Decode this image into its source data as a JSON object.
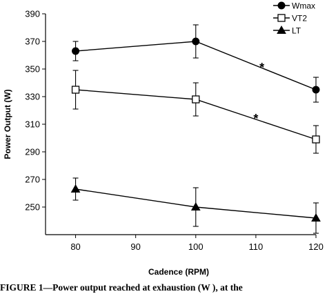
{
  "chart_data": {
    "type": "line",
    "xlabel": "Cadence (RPM)",
    "ylabel": "Power Output (W)",
    "xlim": [
      75,
      120
    ],
    "ylim": [
      230,
      390
    ],
    "xticks": [
      80,
      90,
      100,
      110,
      120
    ],
    "yticks": [
      250,
      270,
      290,
      310,
      330,
      350,
      370,
      390
    ],
    "grid": false,
    "legend_position": "top-right",
    "x": [
      80,
      100,
      120
    ],
    "series": [
      {
        "name": "Wmax",
        "marker": "filled-circle",
        "values": [
          363,
          370,
          335
        ],
        "error": [
          7,
          12,
          9
        ]
      },
      {
        "name": "VT2",
        "marker": "open-square",
        "values": [
          335,
          328,
          299
        ],
        "error": [
          14,
          12,
          10
        ]
      },
      {
        "name": "LT",
        "marker": "filled-triangle",
        "values": [
          263,
          250,
          242
        ],
        "error": [
          8,
          14,
          11
        ]
      }
    ],
    "annotations": [
      {
        "text": "*",
        "x": 111,
        "y": 352
      },
      {
        "text": "*",
        "x": 110,
        "y": 315
      }
    ]
  },
  "caption": "FIGURE 1—Power output reached at exhaustion (W   ), at the"
}
